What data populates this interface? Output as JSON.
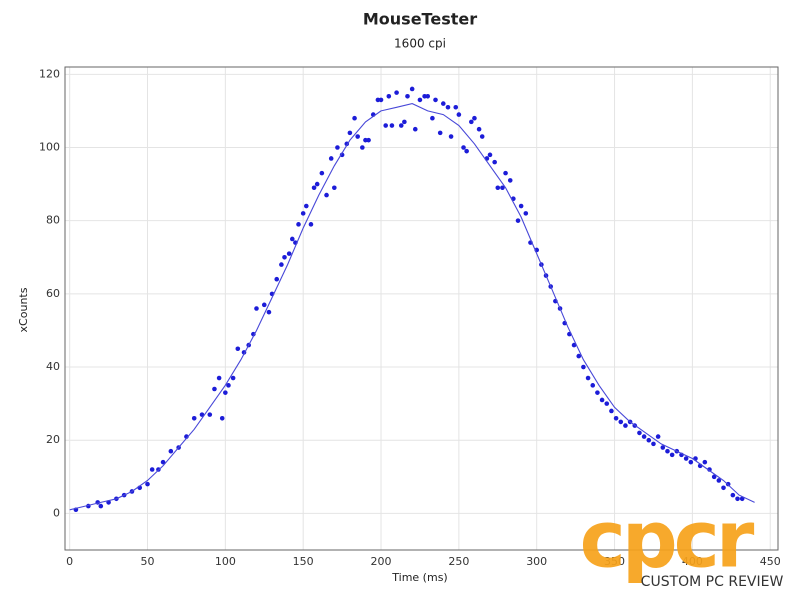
{
  "chart_data": {
    "type": "scatter",
    "title": "MouseTester",
    "subtitle": "1600 cpi",
    "xlabel": "Time (ms)",
    "ylabel": "xCounts",
    "xlim": [
      -3,
      455
    ],
    "ylim": [
      -10,
      122
    ],
    "xticks": [
      0,
      50,
      100,
      150,
      200,
      250,
      300,
      350,
      400,
      450
    ],
    "yticks": [
      0,
      20,
      40,
      60,
      80,
      100,
      120
    ],
    "grid": true,
    "series": [
      {
        "mode": "markers",
        "color": "#1c1cd8",
        "x": [
          4,
          12,
          18,
          20,
          25,
          30,
          35,
          40,
          45,
          50,
          53,
          57,
          60,
          65,
          70,
          75,
          80,
          85,
          90,
          93,
          96,
          98,
          100,
          102,
          105,
          108,
          112,
          115,
          118,
          120,
          125,
          128,
          130,
          133,
          136,
          138,
          141,
          143,
          145,
          147,
          150,
          152,
          155,
          157,
          159,
          162,
          165,
          168,
          170,
          172,
          175,
          178,
          180,
          183,
          185,
          188,
          190,
          192,
          195,
          198,
          200,
          203,
          205,
          207,
          210,
          213,
          215,
          217,
          220,
          222,
          225,
          228,
          230,
          233,
          235,
          238,
          240,
          243,
          245,
          248,
          250,
          253,
          255,
          258,
          260,
          263,
          265,
          268,
          270,
          273,
          275,
          278,
          280,
          283,
          285,
          288,
          290,
          293,
          296,
          300,
          303,
          306,
          309,
          312,
          315,
          318,
          321,
          324,
          327,
          330,
          333,
          336,
          339,
          342,
          345,
          348,
          351,
          354,
          357,
          360,
          363,
          366,
          369,
          372,
          375,
          378,
          381,
          384,
          387,
          390,
          393,
          396,
          399,
          402,
          405,
          408,
          411,
          414,
          417,
          420,
          423,
          426,
          429,
          432
        ],
        "values": [
          1,
          2,
          3,
          2,
          3,
          4,
          5,
          6,
          7,
          8,
          12,
          12,
          14,
          17,
          18,
          21,
          26,
          27,
          27,
          34,
          37,
          26,
          33,
          35,
          37,
          45,
          44,
          46,
          49,
          56,
          57,
          55,
          60,
          64,
          68,
          70,
          71,
          75,
          74,
          79,
          82,
          84,
          79,
          89,
          90,
          93,
          87,
          97,
          89,
          100,
          98,
          101,
          104,
          108,
          103,
          100,
          102,
          102,
          109,
          113,
          113,
          106,
          114,
          106,
          115,
          106,
          107,
          114,
          116,
          105,
          113,
          114,
          114,
          108,
          113,
          104,
          112,
          111,
          103,
          111,
          109,
          100,
          99,
          107,
          108,
          105,
          103,
          97,
          98,
          96,
          89,
          89,
          93,
          91,
          86,
          80,
          84,
          82,
          74,
          72,
          68,
          65,
          62,
          58,
          56,
          52,
          49,
          46,
          43,
          40,
          37,
          35,
          33,
          31,
          30,
          28,
          26,
          25,
          24,
          25,
          24,
          22,
          21,
          20,
          19,
          21,
          18,
          17,
          16,
          17,
          16,
          15,
          14,
          15,
          13,
          14,
          12,
          10,
          9,
          7,
          8,
          5,
          4,
          4
        ]
      },
      {
        "mode": "line",
        "color": "#4848d8",
        "x": [
          0,
          10,
          20,
          30,
          40,
          50,
          60,
          70,
          80,
          90,
          100,
          110,
          120,
          130,
          140,
          150,
          160,
          170,
          180,
          190,
          200,
          210,
          220,
          230,
          240,
          250,
          260,
          270,
          280,
          290,
          300,
          310,
          320,
          330,
          340,
          350,
          360,
          370,
          380,
          390,
          400,
          410,
          420,
          430,
          440
        ],
        "values": [
          1,
          2,
          3,
          4,
          6,
          9,
          13,
          18,
          23,
          29,
          35,
          42,
          50,
          59,
          68,
          78,
          87,
          95,
          102,
          107,
          110,
          111,
          112,
          110,
          109,
          106,
          101,
          95,
          89,
          81,
          71,
          61,
          51,
          42,
          35,
          29,
          25,
          22,
          19,
          17,
          15,
          12,
          9,
          5,
          3
        ]
      }
    ]
  },
  "watermark": {
    "logo": "cpcr",
    "text": "CUSTOM PC REVIEW"
  }
}
